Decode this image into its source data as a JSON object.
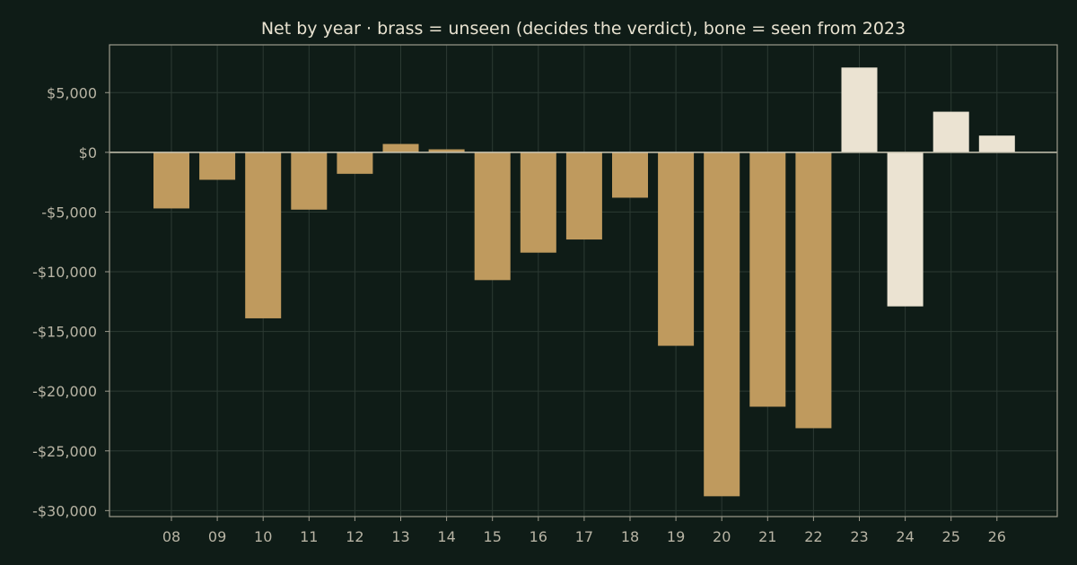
{
  "chart_data": {
    "type": "bar",
    "title": "Net by year  ·  brass = unseen (decides the verdict), bone = seen from 2023",
    "xlabel": "",
    "ylabel": "",
    "categories": [
      "08",
      "09",
      "10",
      "11",
      "12",
      "13",
      "14",
      "15",
      "16",
      "17",
      "18",
      "19",
      "20",
      "21",
      "22",
      "23",
      "24",
      "25",
      "26"
    ],
    "values": [
      -4700,
      -2300,
      -13900,
      -4800,
      -1800,
      700,
      250,
      -10700,
      -8400,
      -7300,
      -3800,
      -16200,
      -28800,
      -21300,
      -23100,
      7100,
      -12900,
      3400,
      1400
    ],
    "groups": [
      "unseen",
      "unseen",
      "unseen",
      "unseen",
      "unseen",
      "unseen",
      "unseen",
      "unseen",
      "unseen",
      "unseen",
      "unseen",
      "unseen",
      "unseen",
      "unseen",
      "unseen",
      "seen",
      "seen",
      "seen",
      "seen"
    ],
    "colors": {
      "unseen": "#bf9a5e",
      "seen": "#ebe3d2"
    },
    "ylim": [
      -30500,
      9000
    ],
    "yticks": [
      5000,
      0,
      -5000,
      -10000,
      -15000,
      -20000,
      -25000,
      -30000
    ],
    "ytick_labels": [
      "$5,000",
      "$0",
      "-$5,000",
      "-$10,000",
      "-$15,000",
      "-$20,000",
      "-$25,000",
      "-$30,000"
    ],
    "grid": true,
    "legend": "none"
  }
}
